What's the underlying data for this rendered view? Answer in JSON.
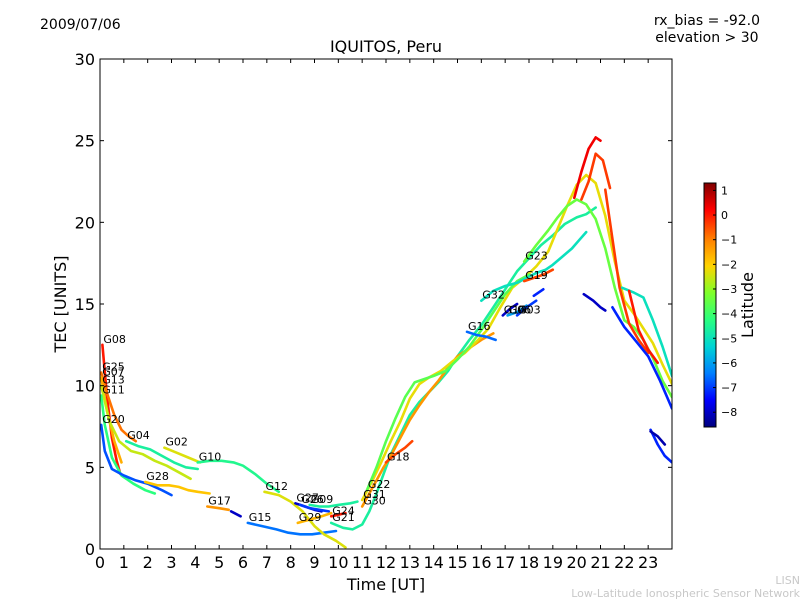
{
  "header": {
    "date": "2009/07/06",
    "rx_bias": "rx_bias = -92.0",
    "elevation": "elevation > 30"
  },
  "footer": {
    "line1": "LISN",
    "line2": "Low-Latitude Ionospheric Sensor Network"
  },
  "chart_data": {
    "type": "line",
    "title": "IQUITOS, Peru",
    "xlabel": "Time [UT]",
    "ylabel": "TEC [UNITS]",
    "xlim": [
      0,
      24
    ],
    "ylim": [
      0,
      30
    ],
    "xticks": [
      0,
      1,
      2,
      3,
      4,
      5,
      6,
      7,
      8,
      9,
      10,
      11,
      12,
      13,
      14,
      15,
      16,
      17,
      18,
      19,
      20,
      21,
      22,
      23
    ],
    "yticks": [
      0,
      5,
      10,
      15,
      20,
      25,
      30
    ],
    "grid": false,
    "colorbar": {
      "label": "Latitude",
      "min": -8.6,
      "max": 1.3,
      "ticks": [
        1,
        0,
        -1,
        -2,
        -3,
        -4,
        -5,
        -6,
        -7,
        -8
      ],
      "stops": [
        "#00007f",
        "#0000ff",
        "#007fff",
        "#00d4d4",
        "#29ff7f",
        "#7fff29",
        "#ffd400",
        "#ff7f00",
        "#ff0000",
        "#7f0000"
      ]
    },
    "series": [
      {
        "name": "G08",
        "label": "G08",
        "lat": 0,
        "x": [
          0.1,
          0.3,
          0.5,
          0.7,
          0.85
        ],
        "y": [
          12.5,
          9.2,
          6.8,
          5.4,
          4.6
        ]
      },
      {
        "name": "G25",
        "label": "G25",
        "lat": -0.8,
        "x": [
          0.05,
          0.3,
          0.6,
          0.9,
          1.2,
          1.5
        ],
        "y": [
          10.8,
          9.5,
          8.2,
          7.3,
          6.9,
          6.6
        ]
      },
      {
        "name": "G07",
        "label": "G07",
        "lat": -1.5,
        "x": [
          0.05,
          0.3,
          0.6,
          0.9
        ],
        "y": [
          10.5,
          8.4,
          6.6,
          5.3
        ]
      },
      {
        "name": "G13",
        "label": "G13",
        "lat": -2.5,
        "x": [
          0.05,
          0.4,
          0.8,
          1.3,
          1.8,
          2.3,
          2.8,
          3.3,
          3.8
        ],
        "y": [
          10.0,
          7.8,
          6.6,
          6.0,
          5.8,
          5.4,
          5.1,
          4.7,
          4.3
        ]
      },
      {
        "name": "G11",
        "label": "G11",
        "lat": -4.2,
        "x": [
          0.05,
          0.2,
          0.5,
          0.9,
          1.4,
          1.9,
          2.3
        ],
        "y": [
          9.4,
          7.6,
          5.6,
          4.5,
          4.0,
          3.6,
          3.4
        ]
      },
      {
        "name": "G20",
        "label": "G20",
        "lat": -6.8,
        "x": [
          0.05,
          0.2,
          0.5,
          1.0,
          1.5,
          2.0,
          2.6,
          3.0
        ],
        "y": [
          7.6,
          6.0,
          4.9,
          4.5,
          4.2,
          4.0,
          3.6,
          3.3
        ]
      },
      {
        "name": "G04",
        "label": "G04",
        "lat": -4.6,
        "x": [
          1.1,
          1.6,
          2.1,
          2.6,
          3.1,
          3.6,
          4.1
        ],
        "y": [
          6.6,
          6.3,
          6.1,
          5.7,
          5.3,
          5.0,
          4.9
        ]
      },
      {
        "name": "G02",
        "label": "G02",
        "lat": -2.3,
        "x": [
          2.7,
          3.2,
          3.7,
          4.2
        ],
        "y": [
          6.2,
          5.9,
          5.6,
          5.3
        ]
      },
      {
        "name": "G28",
        "label": "G28",
        "lat": -1.8,
        "x": [
          1.9,
          2.4,
          2.9,
          3.3,
          3.7,
          4.1,
          4.6
        ],
        "y": [
          4.1,
          3.9,
          3.9,
          3.8,
          3.6,
          3.5,
          3.4
        ]
      },
      {
        "name": "G10",
        "label": "G10",
        "lat": -4.4,
        "x": [
          4.1,
          4.6,
          5.1,
          5.6,
          6.0,
          6.5,
          7.0,
          7.5
        ],
        "y": [
          5.3,
          5.4,
          5.4,
          5.3,
          5.1,
          4.6,
          4.0,
          3.5
        ]
      },
      {
        "name": "G17",
        "label": "G17",
        "lat": -1.2,
        "x": [
          4.5,
          5.0,
          5.4
        ],
        "y": [
          2.6,
          2.5,
          2.4
        ]
      },
      {
        "name": "G17b",
        "label": "",
        "lat": -8.0,
        "x": [
          5.5,
          5.9
        ],
        "y": [
          2.3,
          2.0
        ]
      },
      {
        "name": "G15",
        "label": "G15",
        "lat": -6.5,
        "x": [
          6.2,
          6.8,
          7.4,
          7.9,
          8.4,
          8.9,
          9.4,
          9.9
        ],
        "y": [
          1.6,
          1.4,
          1.2,
          1.0,
          0.9,
          0.9,
          1.0,
          1.1
        ]
      },
      {
        "name": "G12",
        "label": "G12",
        "lat": -2.3,
        "x": [
          6.9,
          7.5,
          8.0,
          8.5,
          9.0,
          9.4,
          9.9,
          10.3
        ],
        "y": [
          3.5,
          3.3,
          2.9,
          2.3,
          1.4,
          0.9,
          0.5,
          0.1
        ]
      },
      {
        "name": "G27",
        "label": "G27",
        "lat": -8.0,
        "x": [
          8.2,
          8.6,
          9.0,
          9.3
        ],
        "y": [
          2.8,
          2.6,
          2.4,
          2.3
        ]
      },
      {
        "name": "G09",
        "label": "G09",
        "lat": -4.6,
        "x": [
          8.8,
          9.2,
          9.6,
          10.0,
          10.5,
          10.8
        ],
        "y": [
          2.7,
          2.6,
          2.6,
          2.7,
          2.8,
          2.9
        ]
      },
      {
        "name": "G26",
        "label": "G26",
        "lat": -7.0,
        "x": [
          8.4,
          8.8,
          9.2,
          9.6
        ],
        "y": [
          2.7,
          2.5,
          2.4,
          2.3
        ]
      },
      {
        "name": "G29",
        "label": "G29",
        "lat": -1.6,
        "x": [
          8.3,
          8.8,
          9.3,
          9.7
        ],
        "y": [
          1.6,
          1.8,
          2.0,
          2.2
        ]
      },
      {
        "name": "G24",
        "label": "G24",
        "lat": 0,
        "x": [
          9.7,
          10.0,
          10.3
        ],
        "y": [
          2.0,
          2.1,
          2.2
        ]
      },
      {
        "name": "G21",
        "label": "G21",
        "lat": -4.6,
        "x": [
          9.7,
          10.2,
          10.6,
          11.0,
          11.3,
          11.6,
          11.9,
          12.2,
          12.6,
          13.0,
          13.4,
          13.8,
          14.2,
          14.6,
          15.0,
          15.5,
          16.0,
          16.5,
          17.0,
          17.5,
          18.0,
          18.5,
          19.0,
          19.5,
          20.0,
          20.4,
          20.8
        ],
        "y": [
          1.6,
          1.3,
          1.2,
          1.5,
          2.3,
          3.4,
          4.6,
          5.8,
          7.0,
          8.2,
          9.0,
          9.6,
          10.2,
          10.9,
          11.8,
          12.8,
          13.7,
          14.8,
          15.9,
          17.0,
          17.8,
          18.6,
          19.2,
          19.9,
          20.3,
          20.5,
          20.9
        ]
      },
      {
        "name": "G30",
        "label": "G30",
        "lat": -1.2,
        "x": [
          11.0,
          11.3,
          11.6,
          11.9,
          12.2,
          12.6,
          13.0,
          13.4,
          13.8,
          14.2,
          14.6,
          15.0,
          15.5,
          16.0,
          16.5
        ],
        "y": [
          2.6,
          3.4,
          4.2,
          5.0,
          5.7,
          6.8,
          7.9,
          8.8,
          9.6,
          10.3,
          11.1,
          11.8,
          12.3,
          12.8,
          13.2
        ]
      },
      {
        "name": "G18",
        "label": "G18",
        "lat": -0.4,
        "x": [
          12.0,
          12.4,
          12.8,
          13.1
        ],
        "y": [
          5.3,
          5.8,
          6.2,
          6.6
        ]
      },
      {
        "name": "G31",
        "label": "G31",
        "lat": -2.2,
        "x": [
          11.0,
          11.4,
          11.8,
          12.2,
          12.6,
          13.0,
          13.4,
          13.8,
          14.3,
          14.8,
          15.3,
          15.8,
          16.3,
          16.8,
          17.3,
          17.8,
          18.3,
          18.8,
          19.2,
          19.6,
          20.0,
          20.4,
          20.8,
          21.2,
          21.6,
          22.0,
          22.4,
          22.8,
          23.2,
          23.6,
          24.0
        ],
        "y": [
          3.0,
          4.1,
          5.3,
          6.6,
          7.8,
          9.2,
          10.1,
          10.5,
          10.9,
          11.5,
          12.0,
          12.7,
          13.5,
          14.8,
          16.0,
          16.6,
          17.3,
          18.2,
          19.6,
          21.0,
          22.3,
          22.9,
          22.4,
          20.4,
          17.6,
          15.2,
          14.4,
          13.5,
          12.6,
          11.3,
          10.1
        ]
      },
      {
        "name": "G22",
        "label": "G22",
        "lat": -3.6,
        "x": [
          11.2,
          11.6,
          12.0,
          12.4,
          12.8,
          13.2,
          13.6,
          14.0,
          14.5,
          15.0,
          15.5,
          16.0,
          16.5,
          17.0,
          17.5,
          18.0
        ],
        "y": [
          3.6,
          5.0,
          6.6,
          8.0,
          9.3,
          10.2,
          10.4,
          10.6,
          10.9,
          11.6,
          12.4,
          13.4,
          14.5,
          15.6,
          16.4,
          16.8
        ]
      },
      {
        "name": "G16",
        "label": "G16",
        "lat": -6.6,
        "x": [
          15.4,
          15.8,
          16.2,
          16.6
        ],
        "y": [
          13.3,
          13.1,
          13.0,
          12.8
        ]
      },
      {
        "name": "G14",
        "label": "G14",
        "lat": -8.0,
        "x": [
          16.9,
          17.2,
          17.5
        ],
        "y": [
          14.3,
          14.7,
          15.0
        ]
      },
      {
        "name": "G06",
        "label": "G06",
        "lat": -6.0,
        "x": [
          17.1,
          17.5,
          17.9
        ],
        "y": [
          14.3,
          14.5,
          14.9
        ]
      },
      {
        "name": "G03",
        "label": "G03",
        "lat": -7.0,
        "x": [
          17.5,
          17.9,
          18.3
        ],
        "y": [
          14.3,
          14.8,
          15.2
        ]
      },
      {
        "name": "G32",
        "label": "G32",
        "lat": -5.0,
        "x": [
          16.0,
          16.5,
          17.0,
          17.5,
          17.9,
          18.3,
          18.7,
          19.0,
          19.4,
          19.8,
          20.1,
          20.4
        ],
        "y": [
          15.2,
          15.8,
          16.1,
          16.3,
          16.6,
          16.9,
          17.1,
          17.4,
          17.9,
          18.4,
          18.9,
          19.4
        ]
      },
      {
        "name": "G19",
        "label": "G19",
        "lat": -0.4,
        "x": [
          17.8,
          18.2,
          18.6,
          19.0
        ],
        "y": [
          16.4,
          16.6,
          16.8,
          17.1
        ]
      },
      {
        "name": "G19b",
        "label": "",
        "lat": -7.2,
        "x": [
          18.2,
          18.6
        ],
        "y": [
          15.5,
          15.9
        ]
      },
      {
        "name": "G23",
        "label": "G23",
        "lat": -3.4,
        "x": [
          17.8,
          18.3,
          18.8,
          19.2,
          19.6,
          20.0,
          20.4,
          20.8,
          21.2,
          21.6,
          22.0,
          22.4,
          22.8,
          23.2,
          23.6,
          24.0
        ],
        "y": [
          17.6,
          18.6,
          19.5,
          20.3,
          21.0,
          21.4,
          21.1,
          20.2,
          18.4,
          16.0,
          14.0,
          13.6,
          12.8,
          11.7,
          10.3,
          9.3
        ]
      },
      {
        "name": "G23b",
        "label": "",
        "lat": 0.3,
        "x": [
          19.9,
          20.2,
          20.5,
          20.8,
          21.0
        ],
        "y": [
          21.5,
          23.1,
          24.5,
          25.2,
          25.0
        ]
      },
      {
        "name": "G23c",
        "label": "",
        "lat": -0.3,
        "x": [
          20.2,
          20.5,
          20.8,
          21.1,
          21.4
        ],
        "y": [
          21.4,
          22.5,
          24.2,
          23.8,
          22.1
        ]
      },
      {
        "name": "G23d",
        "label": "",
        "lat": -8.0,
        "x": [
          20.3,
          20.7,
          21.0,
          21.2
        ],
        "y": [
          15.6,
          15.2,
          14.8,
          14.6
        ]
      },
      {
        "name": "G23e",
        "label": "",
        "lat": -5.0,
        "x": [
          21.9,
          22.4,
          22.8,
          23.2,
          23.6,
          24.0
        ],
        "y": [
          16.0,
          15.7,
          15.4,
          14.0,
          12.4,
          10.6
        ]
      },
      {
        "name": "G23f",
        "label": "",
        "lat": -0.3,
        "x": [
          21.2,
          21.5,
          21.8,
          22.2,
          22.6,
          23.0
        ],
        "y": [
          22.0,
          19.0,
          16.0,
          13.8,
          12.8,
          12.0
        ]
      },
      {
        "name": "G23g",
        "label": "",
        "lat": -7.2,
        "x": [
          21.5,
          22.0,
          22.5,
          23.0,
          23.5,
          24.0
        ],
        "y": [
          14.8,
          13.6,
          12.7,
          11.8,
          10.3,
          8.6
        ]
      },
      {
        "name": "G23h",
        "label": "",
        "lat": 0,
        "x": [
          22.2,
          22.6,
          23.0,
          23.4
        ],
        "y": [
          15.8,
          13.4,
          12.2,
          11.4
        ]
      },
      {
        "name": "G23i",
        "label": "",
        "lat": -7.2,
        "x": [
          23.1,
          23.4,
          23.7,
          24.0
        ],
        "y": [
          7.3,
          6.4,
          5.7,
          5.3
        ]
      },
      {
        "name": "G23j",
        "label": "",
        "lat": -8.2,
        "x": [
          23.1,
          23.4,
          23.7
        ],
        "y": [
          7.2,
          6.9,
          6.4
        ]
      }
    ]
  }
}
